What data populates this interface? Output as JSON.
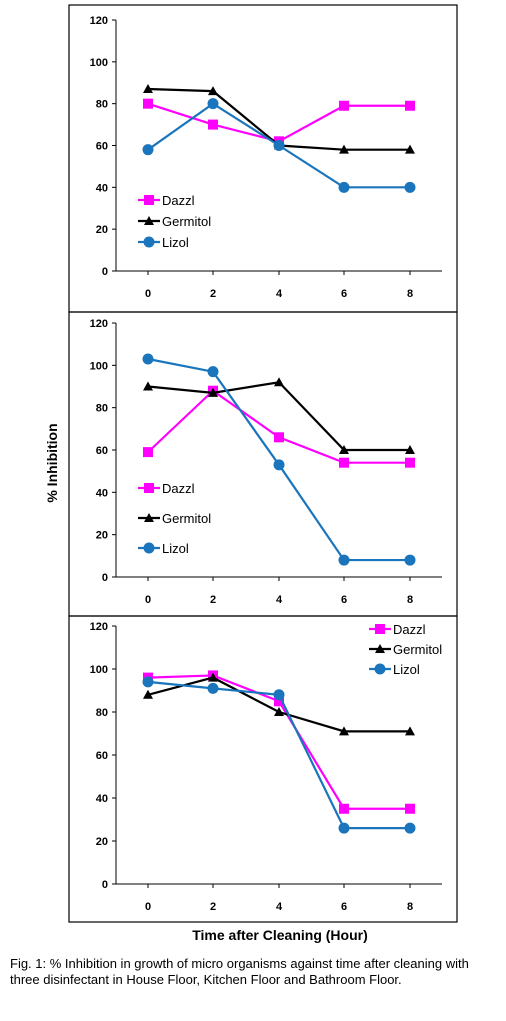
{
  "ylabel": "% Inhibition",
  "xlabel": "Time after Cleaning (Hour)",
  "caption": "Fig. 1: % Inhibition in growth of micro organisms against time after cleaning with three disinfectant in House Floor, Kitchen Floor and Bathroom Floor.",
  "series_styles": [
    {
      "name": "Dazzl",
      "color": "#ff00ff",
      "marker": "square"
    },
    {
      "name": "Germitol",
      "color": "#000000",
      "marker": "triangle"
    },
    {
      "name": "Lizol",
      "color": "#1a75bc",
      "marker": "circle"
    }
  ],
  "chart_data": [
    {
      "type": "line",
      "x": [
        0,
        2,
        4,
        6,
        8
      ],
      "ylim": [
        0,
        120
      ],
      "yticks": [
        0,
        20,
        40,
        60,
        80,
        100,
        120
      ],
      "legend_placement": "lower-left",
      "series": [
        {
          "name": "Dazzl",
          "values": [
            80,
            70,
            62,
            79,
            79
          ]
        },
        {
          "name": "Germitol",
          "values": [
            87,
            86,
            60,
            58,
            58
          ]
        },
        {
          "name": "Lizol",
          "values": [
            58,
            80,
            60,
            40,
            40
          ]
        }
      ]
    },
    {
      "type": "line",
      "x": [
        0,
        2,
        4,
        6,
        8
      ],
      "ylim": [
        0,
        120
      ],
      "yticks": [
        0,
        20,
        40,
        60,
        80,
        100,
        120
      ],
      "legend_placement": "lower-left",
      "series": [
        {
          "name": "Dazzl",
          "values": [
            59,
            88,
            66,
            54,
            54
          ]
        },
        {
          "name": "Germitol",
          "values": [
            90,
            87,
            92,
            60,
            60
          ]
        },
        {
          "name": "Lizol",
          "values": [
            103,
            97,
            53,
            8,
            8
          ]
        }
      ]
    },
    {
      "type": "line",
      "x": [
        0,
        2,
        4,
        6,
        8
      ],
      "ylim": [
        0,
        120
      ],
      "yticks": [
        0,
        20,
        40,
        60,
        80,
        100,
        120
      ],
      "legend_placement": "top-right",
      "series": [
        {
          "name": "Dazzl",
          "values": [
            96,
            97,
            85,
            35,
            35
          ]
        },
        {
          "name": "Germitol",
          "values": [
            88,
            96,
            80,
            71,
            71
          ]
        },
        {
          "name": "Lizol",
          "values": [
            94,
            91,
            88,
            26,
            26
          ]
        }
      ]
    }
  ]
}
